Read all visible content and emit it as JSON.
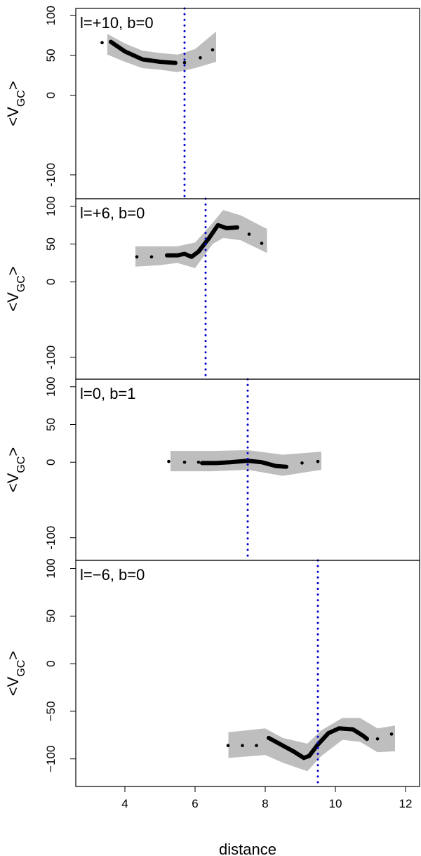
{
  "chart_data": [
    {
      "type": "line",
      "panel_label": "l=+10, b=0",
      "y_label_parts": [
        "<V",
        "GC",
        ">"
      ],
      "xlim": [
        2.6,
        12.4
      ],
      "ylim": [
        -130,
        109
      ],
      "yticks": [
        -100,
        0,
        50,
        100
      ],
      "band": {
        "color": "#bebebe",
        "x": [
          3.5,
          4.0,
          4.5,
          5.0,
          5.5,
          6.0,
          6.6
        ],
        "upper": [
          77,
          65,
          56,
          53,
          51,
          58,
          80
        ],
        "lower": [
          51,
          42,
          34,
          32,
          29,
          34,
          42
        ]
      },
      "smooth": {
        "color": "#000000",
        "x": [
          3.6,
          4.0,
          4.5,
          5.0,
          5.44
        ],
        "values": [
          67,
          55,
          45,
          42,
          40.5
        ]
      },
      "points": {
        "color": "#000000",
        "x": [
          3.35,
          5.7,
          6.15,
          6.5
        ],
        "values": [
          66,
          41,
          47,
          57
        ]
      },
      "vline": {
        "color": "#0000cc",
        "x": 5.7
      }
    },
    {
      "type": "line",
      "panel_label": "l=+6, b=0",
      "y_label_parts": [
        "<V",
        "GC",
        ">"
      ],
      "xlim": [
        2.6,
        12.4
      ],
      "ylim": [
        -129,
        110
      ],
      "yticks": [
        -100,
        0,
        50,
        100
      ],
      "band": {
        "color": "#bebebe",
        "x": [
          4.3,
          5.0,
          5.5,
          6.0,
          6.5,
          6.8,
          7.3,
          8.05
        ],
        "upper": [
          47,
          47,
          47,
          52,
          78,
          95,
          88,
          70
        ],
        "lower": [
          20,
          22,
          25,
          18,
          50,
          58,
          55,
          38
        ]
      },
      "smooth": {
        "color": "#000000",
        "x": [
          5.2,
          5.5,
          5.7,
          5.9,
          6.1,
          6.4,
          6.65,
          6.9,
          7.2
        ],
        "values": [
          35,
          35,
          37,
          33,
          40,
          58,
          75,
          71,
          72
        ]
      },
      "points": {
        "color": "#000000",
        "x": [
          4.34,
          4.76,
          7.54,
          7.9
        ],
        "values": [
          33,
          33,
          63,
          51
        ]
      },
      "vline": {
        "color": "#0000cc",
        "x": 6.3
      }
    },
    {
      "type": "line",
      "panel_label": "l=0, b=1",
      "y_label_parts": [
        "<V",
        "GC",
        ">"
      ],
      "xlim": [
        2.6,
        12.4
      ],
      "ylim": [
        -130,
        110
      ],
      "yticks": [
        -100,
        0,
        50,
        100
      ],
      "band": {
        "color": "#bebebe",
        "x": [
          5.3,
          6.5,
          7.5,
          8.5,
          9.6
        ],
        "upper": [
          15,
          15,
          16,
          10,
          14
        ],
        "lower": [
          -12,
          -12,
          -10,
          -18,
          -10
        ]
      },
      "smooth": {
        "color": "#000000",
        "x": [
          6.2,
          6.6,
          7.0,
          7.5,
          7.9,
          8.3,
          8.6
        ],
        "values": [
          -1,
          -1,
          0,
          2,
          0,
          -5,
          -6
        ]
      },
      "points": {
        "color": "#000000",
        "x": [
          5.25,
          5.7,
          6.1,
          9.05,
          9.5
        ],
        "values": [
          1,
          0,
          0,
          -1,
          1
        ]
      },
      "vline": {
        "color": "#0000cc",
        "x": 7.5
      }
    },
    {
      "type": "line",
      "panel_label": "l=−6, b=0",
      "y_label_parts": [
        "<V",
        "GC",
        ">"
      ],
      "x_label": "distance",
      "xlim": [
        2.6,
        12.4
      ],
      "xticks": [
        4,
        6,
        8,
        10,
        12
      ],
      "ylim": [
        -129,
        108.5
      ],
      "yticks": [
        {
          "value": -100,
          "label": "−100"
        },
        {
          "value": -50,
          "label": "−50"
        },
        0,
        50,
        100
      ],
      "band": {
        "color": "#bebebe",
        "x": [
          6.95,
          8.0,
          8.5,
          9.2,
          9.6,
          10.2,
          10.7,
          11.2,
          11.7
        ],
        "upper": [
          -72,
          -68,
          -78,
          -84,
          -70,
          -57,
          -57,
          -68,
          -65
        ],
        "lower": [
          -99,
          -96,
          -104,
          -113,
          -97,
          -80,
          -82,
          -93,
          -92
        ]
      },
      "smooth": {
        "color": "#000000",
        "x": [
          8.1,
          8.5,
          8.8,
          9.1,
          9.25,
          9.5,
          9.8,
          10.1,
          10.5,
          10.8,
          10.9
        ],
        "values": [
          -78,
          -86,
          -92,
          -99,
          -97,
          -85,
          -73,
          -68,
          -69,
          -76,
          -79
        ]
      },
      "points": {
        "color": "#000000",
        "x": [
          6.94,
          7.35,
          7.75,
          11.2,
          11.6
        ],
        "values": [
          -86,
          -86,
          -86,
          -79,
          -74
        ]
      },
      "vline": {
        "color": "#0000cc",
        "x": 9.5
      }
    }
  ]
}
